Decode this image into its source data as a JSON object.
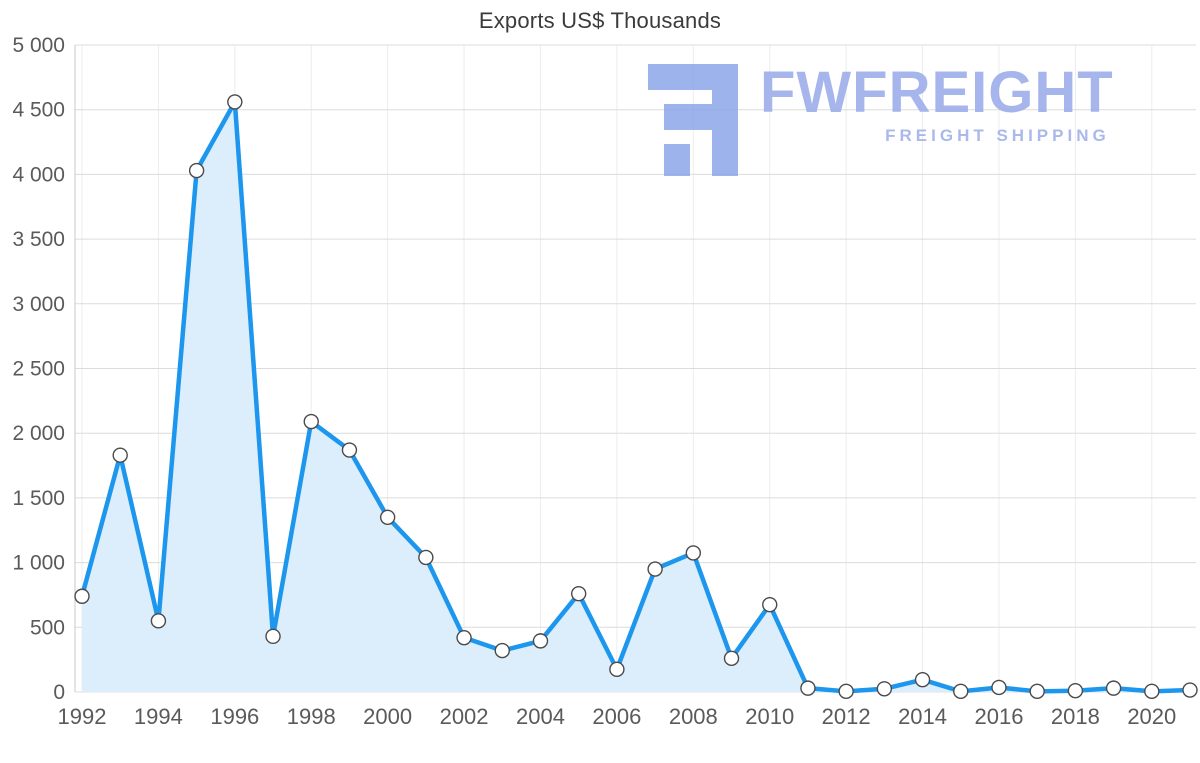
{
  "watermark": {
    "brand": "FWFREIGHT",
    "tagline": "FREIGHT SHIPPING"
  },
  "chart_data": {
    "type": "area",
    "title": "Exports US$ Thousands",
    "xlabel": "",
    "ylabel": "",
    "x": [
      1992,
      1993,
      1994,
      1995,
      1996,
      1997,
      1998,
      1999,
      2000,
      2001,
      2002,
      2003,
      2004,
      2005,
      2006,
      2007,
      2008,
      2009,
      2010,
      2011,
      2012,
      2013,
      2014,
      2015,
      2016,
      2017,
      2018,
      2019,
      2020,
      2021
    ],
    "values": [
      740,
      1830,
      550,
      4030,
      4560,
      430,
      2090,
      1870,
      1350,
      1040,
      420,
      320,
      395,
      760,
      175,
      950,
      1075,
      260,
      675,
      30,
      5,
      25,
      95,
      5,
      35,
      5,
      10,
      30,
      5,
      15
    ],
    "ylim": [
      0,
      5000
    ],
    "y_ticks": [
      0,
      500,
      1000,
      1500,
      2000,
      2500,
      3000,
      3500,
      4000,
      4500,
      5000
    ],
    "y_tick_labels": [
      "0",
      "500",
      "1 000",
      "1 500",
      "2 000",
      "2 500",
      "3 000",
      "3 500",
      "4 000",
      "4 500",
      "5 000"
    ],
    "x_tick_labels": [
      "1992",
      "1994",
      "1996",
      "1998",
      "2000",
      "2002",
      "2004",
      "2006",
      "2008",
      "2010",
      "2012",
      "2014",
      "2016",
      "2018",
      "2020"
    ],
    "grid": true,
    "legend": false,
    "colors": {
      "line": "#1d96ee",
      "fill": "#dcedfb",
      "marker_fill": "#ffffff",
      "marker_stroke": "#4a4a4a",
      "grid": "#dcdcdc",
      "grid_v": "#ececec",
      "axis": "#c8c8c8",
      "text": "#5a5a5a",
      "title": "#3b3b3b",
      "watermark": "#a2b2ea"
    }
  }
}
